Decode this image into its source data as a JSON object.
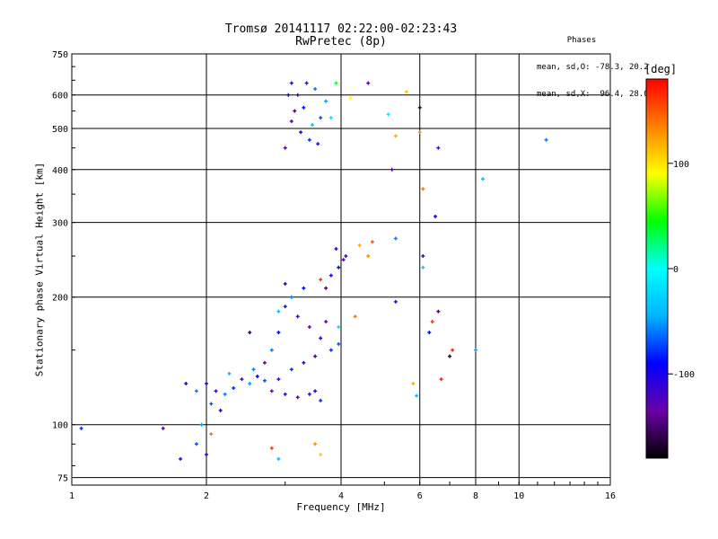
{
  "chart_data": {
    "type": "scatter",
    "title": "Tromsø 20141117 02:22:00-02:23:43",
    "subtitle": "RwPretec (8p)",
    "xlabel": "Frequency [MHz]",
    "ylabel": "Stationary phase Virtual Height [km]",
    "x_scale": "log",
    "y_scale": "log",
    "xlim": [
      1,
      16
    ],
    "ylim": [
      72,
      750
    ],
    "x_ticks": [
      "1",
      "2",
      "4",
      "6",
      "8",
      "10",
      "16"
    ],
    "y_ticks": [
      "75",
      "100",
      "200",
      "300",
      "400",
      "500",
      "600",
      "750"
    ],
    "grid": true,
    "phase_stats": {
      "heading": "Phases",
      "o_mode": "mean, sd,O: -78.3, 20.2",
      "x_mode": "mean, sd,X:  96.4, 28.0"
    },
    "colorbar": {
      "label": "[deg]",
      "range": [
        -180,
        180
      ],
      "ticks": [
        "100",
        "0",
        "-100"
      ],
      "colormap": [
        "#000000",
        "#6a00a8",
        "#0000ff",
        "#00b4ff",
        "#00ffff",
        "#00ff00",
        "#ffff00",
        "#ff8000",
        "#ff0000"
      ]
    },
    "series": [
      {
        "points": [
          {
            "x": 3.1,
            "y": 640,
            "p": -110
          },
          {
            "x": 3.2,
            "y": 600,
            "p": -120
          },
          {
            "x": 3.3,
            "y": 560,
            "p": -90
          },
          {
            "x": 3.1,
            "y": 520,
            "p": -130
          },
          {
            "x": 3.25,
            "y": 490,
            "p": -100
          },
          {
            "x": 3.4,
            "y": 470,
            "p": -80
          },
          {
            "x": 3.5,
            "y": 620,
            "p": -60
          },
          {
            "x": 3.6,
            "y": 530,
            "p": -70
          },
          {
            "x": 3.0,
            "y": 450,
            "p": -140
          },
          {
            "x": 3.7,
            "y": 580,
            "p": -50
          },
          {
            "x": 3.15,
            "y": 550,
            "p": -150
          },
          {
            "x": 3.45,
            "y": 510,
            "p": -30
          },
          {
            "x": 3.35,
            "y": 640,
            "p": -120
          },
          {
            "x": 3.05,
            "y": 600,
            "p": -95
          },
          {
            "x": 3.55,
            "y": 460,
            "p": -110
          },
          {
            "x": 3.8,
            "y": 530,
            "p": -20
          },
          {
            "x": 3.9,
            "y": 640,
            "p": 40
          },
          {
            "x": 4.2,
            "y": 590,
            "p": 90
          },
          {
            "x": 4.6,
            "y": 640,
            "p": -140
          },
          {
            "x": 5.6,
            "y": 610,
            "p": 110
          },
          {
            "x": 6.0,
            "y": 560,
            "p": -170
          },
          {
            "x": 5.3,
            "y": 480,
            "p": 120
          },
          {
            "x": 6.0,
            "y": 490,
            "p": 130
          },
          {
            "x": 6.6,
            "y": 450,
            "p": -120
          },
          {
            "x": 6.1,
            "y": 360,
            "p": 140
          },
          {
            "x": 5.2,
            "y": 400,
            "p": -130
          },
          {
            "x": 6.5,
            "y": 310,
            "p": -100
          },
          {
            "x": 8.3,
            "y": 380,
            "p": -40
          },
          {
            "x": 11.5,
            "y": 470,
            "p": -60
          },
          {
            "x": 5.1,
            "y": 540,
            "p": -10
          },
          {
            "x": 3.9,
            "y": 260,
            "p": -110
          },
          {
            "x": 4.1,
            "y": 250,
            "p": -120
          },
          {
            "x": 3.95,
            "y": 235,
            "p": -90
          },
          {
            "x": 4.05,
            "y": 245,
            "p": -130
          },
          {
            "x": 3.8,
            "y": 225,
            "p": -100
          },
          {
            "x": 4.4,
            "y": 265,
            "p": 120
          },
          {
            "x": 4.7,
            "y": 270,
            "p": 150
          },
          {
            "x": 5.3,
            "y": 275,
            "p": -60
          },
          {
            "x": 4.6,
            "y": 250,
            "p": 130
          },
          {
            "x": 3.7,
            "y": 210,
            "p": -150
          },
          {
            "x": 3.6,
            "y": 220,
            "p": 160
          },
          {
            "x": 6.1,
            "y": 250,
            "p": -120
          },
          {
            "x": 6.1,
            "y": 235,
            "p": -30
          },
          {
            "x": 3.0,
            "y": 190,
            "p": -110
          },
          {
            "x": 3.2,
            "y": 180,
            "p": -120
          },
          {
            "x": 3.4,
            "y": 170,
            "p": -130
          },
          {
            "x": 3.6,
            "y": 160,
            "p": -100
          },
          {
            "x": 3.8,
            "y": 150,
            "p": -80
          },
          {
            "x": 3.95,
            "y": 155,
            "p": -70
          },
          {
            "x": 2.9,
            "y": 165,
            "p": -90
          },
          {
            "x": 2.8,
            "y": 150,
            "p": -60
          },
          {
            "x": 2.7,
            "y": 140,
            "p": -140
          },
          {
            "x": 3.3,
            "y": 140,
            "p": -110
          },
          {
            "x": 3.5,
            "y": 145,
            "p": -150
          },
          {
            "x": 3.1,
            "y": 200,
            "p": -60
          },
          {
            "x": 2.9,
            "y": 185,
            "p": -40
          },
          {
            "x": 3.7,
            "y": 175,
            "p": -130
          },
          {
            "x": 3.95,
            "y": 170,
            "p": -20
          },
          {
            "x": 3.0,
            "y": 215,
            "p": -100
          },
          {
            "x": 3.3,
            "y": 210,
            "p": -90
          },
          {
            "x": 2.5,
            "y": 165,
            "p": -160
          },
          {
            "x": 4.3,
            "y": 180,
            "p": 140
          },
          {
            "x": 5.3,
            "y": 195,
            "p": -110
          },
          {
            "x": 6.6,
            "y": 185,
            "p": -150
          },
          {
            "x": 6.4,
            "y": 175,
            "p": 160
          },
          {
            "x": 6.3,
            "y": 165,
            "p": -90
          },
          {
            "x": 7.1,
            "y": 150,
            "p": 170
          },
          {
            "x": 7.0,
            "y": 145,
            "p": -170
          },
          {
            "x": 8.0,
            "y": 150,
            "p": -50
          },
          {
            "x": 2.0,
            "y": 125,
            "p": -100
          },
          {
            "x": 2.1,
            "y": 120,
            "p": -110
          },
          {
            "x": 2.2,
            "y": 118,
            "p": -60
          },
          {
            "x": 2.3,
            "y": 122,
            "p": -80
          },
          {
            "x": 2.4,
            "y": 128,
            "p": -120
          },
          {
            "x": 2.5,
            "y": 125,
            "p": -50
          },
          {
            "x": 2.6,
            "y": 130,
            "p": -90
          },
          {
            "x": 2.7,
            "y": 127,
            "p": -70
          },
          {
            "x": 2.8,
            "y": 120,
            "p": -130
          },
          {
            "x": 3.0,
            "y": 118,
            "p": -110
          },
          {
            "x": 3.2,
            "y": 116,
            "p": -140
          },
          {
            "x": 3.4,
            "y": 118,
            "p": -120
          },
          {
            "x": 3.5,
            "y": 120,
            "p": -100
          },
          {
            "x": 3.6,
            "y": 114,
            "p": -80
          },
          {
            "x": 1.8,
            "y": 125,
            "p": -100
          },
          {
            "x": 1.9,
            "y": 120,
            "p": -60
          },
          {
            "x": 2.05,
            "y": 112,
            "p": -70
          },
          {
            "x": 2.15,
            "y": 108,
            "p": -90
          },
          {
            "x": 2.25,
            "y": 132,
            "p": -40
          },
          {
            "x": 2.55,
            "y": 135,
            "p": -60
          },
          {
            "x": 2.9,
            "y": 128,
            "p": -110
          },
          {
            "x": 3.1,
            "y": 135,
            "p": -80
          },
          {
            "x": 1.95,
            "y": 100,
            "p": -50
          },
          {
            "x": 2.05,
            "y": 95,
            "p": 140
          },
          {
            "x": 1.9,
            "y": 90,
            "p": -70
          },
          {
            "x": 2.0,
            "y": 85,
            "p": -100
          },
          {
            "x": 1.75,
            "y": 83,
            "p": -110
          },
          {
            "x": 1.6,
            "y": 98,
            "p": -130
          },
          {
            "x": 2.8,
            "y": 88,
            "p": 160
          },
          {
            "x": 2.9,
            "y": 83,
            "p": -40
          },
          {
            "x": 3.5,
            "y": 90,
            "p": 130
          },
          {
            "x": 3.6,
            "y": 85,
            "p": 110
          },
          {
            "x": 1.05,
            "y": 98,
            "p": -80
          },
          {
            "x": 5.8,
            "y": 125,
            "p": 120
          },
          {
            "x": 5.9,
            "y": 117,
            "p": -40
          },
          {
            "x": 6.7,
            "y": 128,
            "p": 170
          }
        ]
      }
    ]
  }
}
